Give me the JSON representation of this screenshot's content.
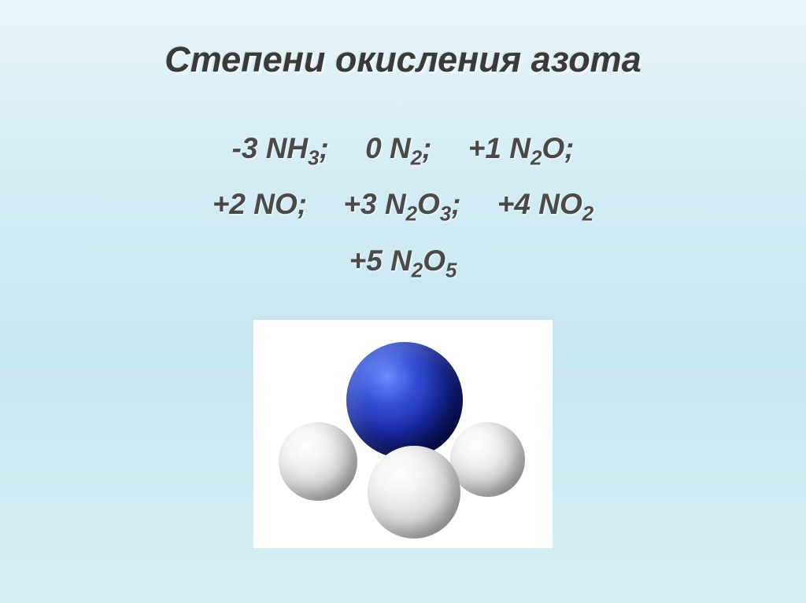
{
  "title": "Степени окисления азота",
  "formulas": {
    "line1": {
      "g1": {
        "prefix": "-3",
        "body": "NH",
        "sub": "3",
        "suffix": ";"
      },
      "g2": {
        "prefix": "0",
        "body": "N",
        "sub": "2",
        "suffix": ";"
      },
      "g3": {
        "prefix": "+1",
        "body": "N",
        "sub": "2",
        "body2": "O",
        "suffix": ";"
      }
    },
    "line2": {
      "g1": {
        "prefix": "+2",
        "body": "NO",
        "suffix": ";"
      },
      "g2": {
        "prefix": "+3",
        "body": "N",
        "sub": "2",
        "body2": "O",
        "sub2": "3",
        "suffix": ";"
      },
      "g3": {
        "prefix": "+4",
        "body": "NO",
        "sub": "2",
        "suffix": ""
      }
    },
    "line3": {
      "g1": {
        "prefix": "+5",
        "body": "N",
        "sub": "2",
        "body2": "O",
        "sub2": "5",
        "suffix": ""
      }
    }
  },
  "molecule": {
    "type": "ball-model",
    "description": "ammonia-nh3",
    "center_color": "#1828a8",
    "hydrogen_color": "#d8d8d8",
    "background": "#ffffff"
  },
  "styling": {
    "title_fontsize": 45,
    "formula_fontsize": 37,
    "title_color": "#3a3a3a",
    "formula_color": "#4a4a4a",
    "bg_gradient_top": "#e8f4f8",
    "bg_gradient_bottom": "#d8eef5"
  }
}
